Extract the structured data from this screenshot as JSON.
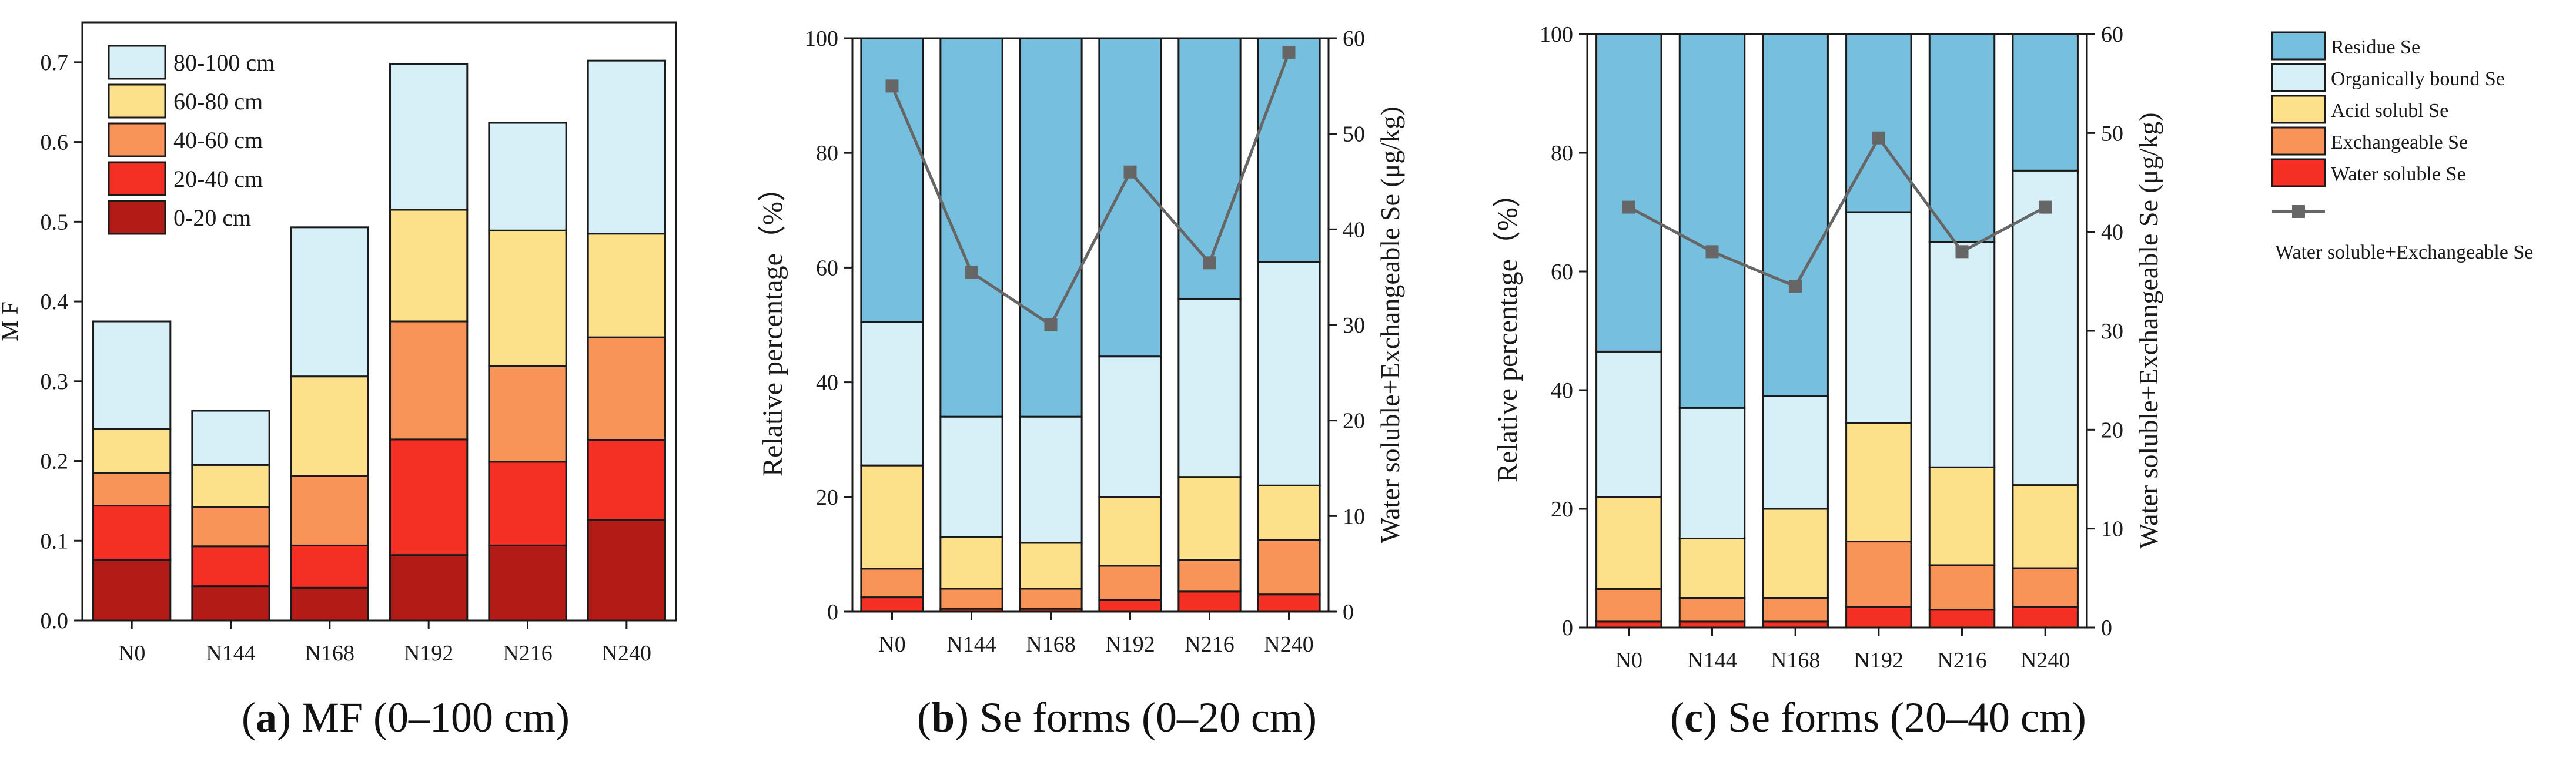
{
  "colors": {
    "80-100 cm": "#d7f0f7",
    "60-80 cm": "#fde08a",
    "40-60 cm": "#f99459",
    "20-40 cm": "#f43024",
    "0-20 cm": "#b31b17",
    "Residue Se": "#77bfdf",
    "Organically bound Se": "#d7f0f7",
    "Acid solubl Se": "#fde08a",
    "Exchangeable Se": "#f99459",
    "Water soluble Se": "#f43024",
    "line": "#666666"
  },
  "captions": [
    {
      "letter": "a",
      "text": " MF (0–100 cm)"
    },
    {
      "letter": "b",
      "text": " Se forms (0–20 cm)"
    },
    {
      "letter": "c",
      "text": " Se forms (20–40 cm)"
    }
  ],
  "chart_data": [
    {
      "id": "a",
      "type": "bar",
      "stacked": true,
      "ylabel": "M F",
      "ylim": [
        0,
        0.75
      ],
      "yticks": [
        "0.0",
        "0.1",
        "0.2",
        "0.3",
        "0.4",
        "0.5",
        "0.6",
        "0.7"
      ],
      "categories": [
        "N0",
        "N144",
        "N168",
        "N192",
        "N216",
        "N240"
      ],
      "legend_position": "top-left",
      "series": [
        {
          "name": "0-20 cm",
          "values": [
            0.076,
            0.043,
            0.041,
            0.082,
            0.094,
            0.126
          ]
        },
        {
          "name": "20-40 cm",
          "values": [
            0.068,
            0.05,
            0.053,
            0.145,
            0.105,
            0.1
          ]
        },
        {
          "name": "40-60 cm",
          "values": [
            0.041,
            0.049,
            0.087,
            0.148,
            0.12,
            0.129
          ]
        },
        {
          "name": "60-80 cm",
          "values": [
            0.055,
            0.053,
            0.125,
            0.14,
            0.17,
            0.13
          ]
        },
        {
          "name": "80-100 cm",
          "values": [
            0.135,
            0.068,
            0.187,
            0.183,
            0.135,
            0.217
          ]
        }
      ]
    },
    {
      "id": "b",
      "type": "bar",
      "stacked": true,
      "ylabel": "Relative percentage（%）",
      "y2label": "Water soluble+Exchangeable Se (μg/kg)",
      "ylim": [
        0,
        100
      ],
      "y2lim": [
        0,
        60
      ],
      "yticks": [
        "0",
        "20",
        "40",
        "60",
        "80",
        "100"
      ],
      "y2ticks": [
        "0",
        "10",
        "20",
        "30",
        "40",
        "50",
        "60"
      ],
      "categories": [
        "N0",
        "N144",
        "N168",
        "N192",
        "N216",
        "N240"
      ],
      "series": [
        {
          "name": "Water soluble Se",
          "values": [
            2.5,
            0.5,
            0.5,
            2,
            3.5,
            3
          ]
        },
        {
          "name": "Exchangeable Se",
          "values": [
            5,
            3.5,
            3.5,
            6,
            5.5,
            9.5
          ]
        },
        {
          "name": "Acid solubl Se",
          "values": [
            18,
            9,
            8,
            12,
            14.5,
            9.5
          ]
        },
        {
          "name": "Organically bound Se",
          "values": [
            25,
            21,
            22,
            24.5,
            31,
            39
          ]
        },
        {
          "name": "Residue Se",
          "values": [
            49.5,
            66,
            66,
            55.5,
            45.5,
            39
          ]
        }
      ],
      "line": {
        "name": "Water soluble+Exchangeable Se",
        "values": [
          55,
          35.5,
          30,
          46,
          36.5,
          58.5
        ]
      }
    },
    {
      "id": "c",
      "type": "bar",
      "stacked": true,
      "ylabel": "Relative percentage（%）",
      "y2label": "Water soluble+Exchangeable Se (μg/kg)",
      "ylim": [
        0,
        100
      ],
      "y2lim": [
        0,
        60
      ],
      "yticks": [
        "0",
        "20",
        "40",
        "60",
        "80",
        "100"
      ],
      "y2ticks": [
        "0",
        "10",
        "20",
        "30",
        "40",
        "50",
        "60"
      ],
      "categories": [
        "N0",
        "N144",
        "N168",
        "N192",
        "N216",
        "N240"
      ],
      "series": [
        {
          "name": "Water soluble Se",
          "values": [
            1,
            1,
            1,
            3.5,
            3,
            3.5
          ]
        },
        {
          "name": "Exchangeable Se",
          "values": [
            5.5,
            4,
            4,
            11,
            7.5,
            6.5
          ]
        },
        {
          "name": "Acid solubl Se",
          "values": [
            15.5,
            10,
            15,
            20,
            16.5,
            14
          ]
        },
        {
          "name": "Organically bound Se",
          "values": [
            24.5,
            22,
            19,
            35.5,
            38,
            53
          ]
        },
        {
          "name": "Residue Se",
          "values": [
            53.5,
            63,
            61,
            30,
            35,
            23
          ]
        }
      ],
      "line": {
        "name": "Water soluble+Exchangeable Se",
        "values": [
          42.5,
          38,
          34.5,
          49.5,
          38,
          42.5
        ]
      }
    }
  ],
  "legend_right": {
    "items": [
      "Residue Se",
      "Organically bound Se",
      "Acid solubl Se",
      "Exchangeable Se",
      "Water soluble Se"
    ],
    "line_label": "Water soluble+Exchangeable Se"
  }
}
